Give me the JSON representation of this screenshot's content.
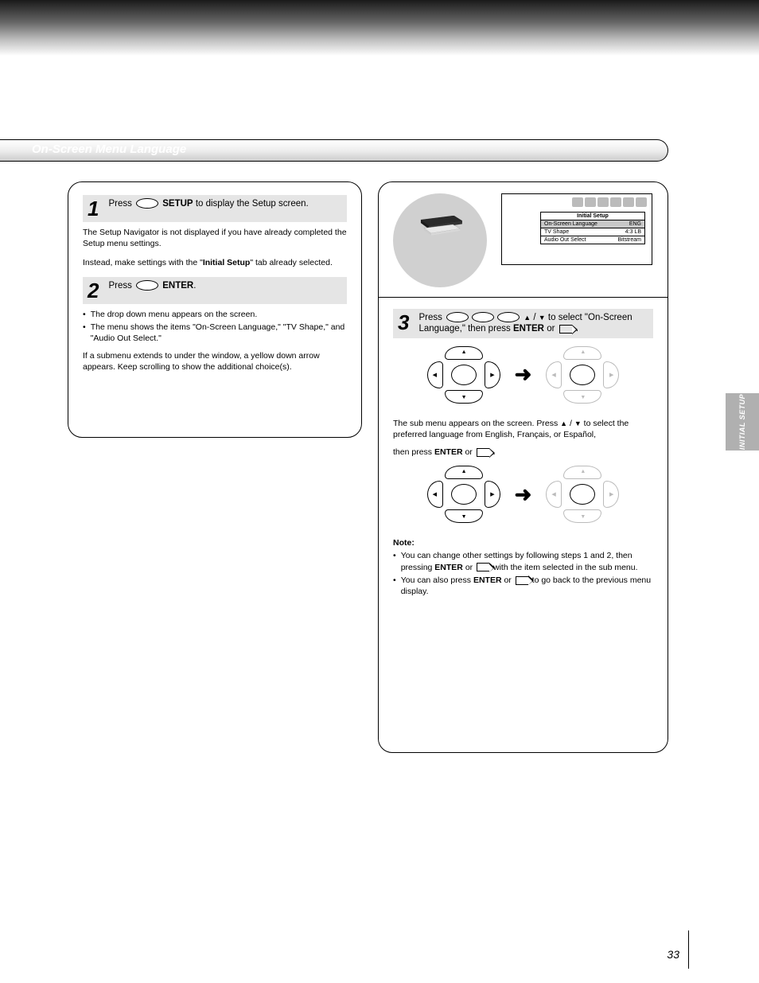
{
  "page": {
    "title": "Initial Setup",
    "section_label": "On-Screen Menu Language",
    "page_number": "33",
    "side_tab": "INITIAL SETUP"
  },
  "left_panel": {
    "step1": {
      "num": "1",
      "text_pre": "Press ",
      "btn": "SETUP",
      "text_post": " to display the Setup screen."
    },
    "step1_body1": "The Setup Navigator is not displayed if you have already completed the Setup menu settings.",
    "step1_body2_pre": "Instead, make settings with the \"",
    "step1_body2_b": "Initial Setup",
    "step1_body2_post": "\" tab already selected.",
    "step2": {
      "num": "2",
      "text_pre": "Press ",
      "btn": "ENTER",
      "text_post": "."
    },
    "bullets": [
      "The drop down menu appears on the screen.",
      "The menu shows the items \"On-Screen Language,\" \"TV Shape,\" and \"Audio Out Select.\""
    ],
    "step2_body": "If a submenu extends to under the window, a yellow down arrow appears. Keep scrolling to show the additional choice(s)."
  },
  "osd": {
    "title": "Initial Setup",
    "rows": [
      {
        "label": "On-Screen Language",
        "value": "ENG",
        "highlight": true
      },
      {
        "label": "TV Shape",
        "value": "4:3 LB",
        "highlight": false
      },
      {
        "label": "Audio Out Select",
        "value": "Bitstream",
        "highlight": false
      }
    ]
  },
  "right_panel": {
    "step3": {
      "num": "3",
      "line1_a": "Press ",
      "line1_b": " / ",
      "line1_c": " to select \"On-Screen",
      "line2_a": "Language,\" then press ",
      "line2_b": "ENTER",
      "line2_c": " or ",
      "line2_d": "."
    },
    "step3_body_a": "The sub menu appears on the screen. Press ",
    "step3_body_b": " / ",
    "step3_body_c": " to select the preferred language from English, Français, or Español,",
    "step3_body2_a": "then press ",
    "step3_body2_b": "ENTER",
    "step3_body2_c": " or ",
    "step3_body2_d": "."
  },
  "note": {
    "title": "Note:",
    "lines": [
      {
        "pre": "You can change other settings by following steps 1 and 2, then pressing ",
        "b1": "ENTER",
        "mid": " or ",
        "post": " with the item selected in the sub menu."
      },
      {
        "pre": "You can also press ",
        "b1": "ENTER",
        "mid": " or ",
        "post": " to go back to the previous menu display."
      }
    ]
  },
  "colors": {
    "gradient_dark": "#1a1a1a",
    "gradient_light": "#ffffff",
    "step_bg": "#e5e5e5",
    "circle_bg": "#d0d0d0",
    "side_tab_bg": "#b0b0b0",
    "dim_stroke": "#bbbbbb"
  }
}
